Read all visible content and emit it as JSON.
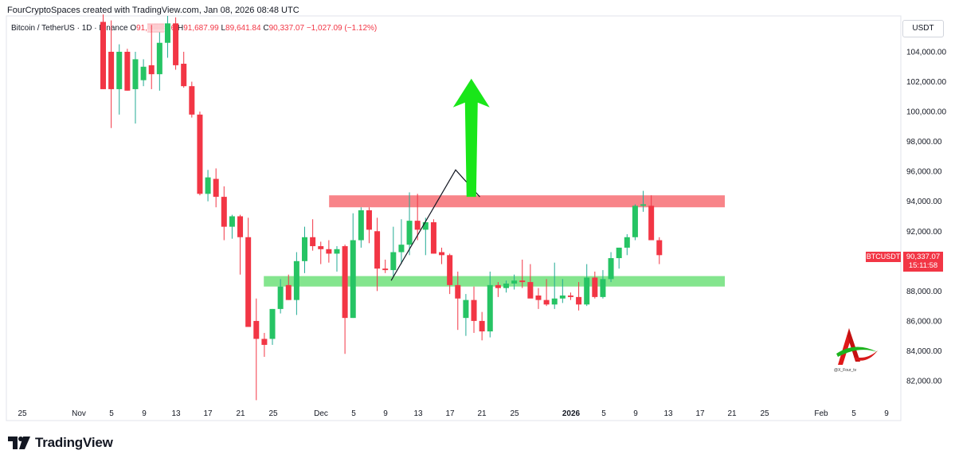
{
  "header": {
    "attribution": "FourCryptoSpaces created with TradingView.com, Jan 08, 2026 08:48 UTC"
  },
  "legend": {
    "symbol": "Bitcoin / TetherUS · 1D · Binance",
    "o_label": "O",
    "o_value": "91,▒▒▒.16",
    "h_label": "H",
    "h_value": "91,687.99",
    "l_label": "L",
    "l_value": "89,641.84",
    "c_label": "C",
    "c_value": "90,337.07",
    "change": "−1,027.09 (−1.12%)"
  },
  "price_scale": {
    "currency": "USDT",
    "ticks": [
      "104,000.00",
      "102,000.00",
      "100,000.00",
      "98,000.00",
      "96,000.00",
      "94,000.00",
      "92,000.00",
      "88,000.00",
      "86,000.00",
      "84,000.00",
      "82,000.00"
    ]
  },
  "last_price": {
    "symbol": "BTCUSDT",
    "price": "90,337.07",
    "countdown": "15:11:58"
  },
  "time_axis": {
    "labels": [
      "25",
      "Nov",
      "5",
      "9",
      "13",
      "17",
      "21",
      "25",
      "Dec",
      "5",
      "9",
      "13",
      "17",
      "21",
      "25",
      "2026",
      "5",
      "9",
      "13",
      "17",
      "21",
      "25",
      "Feb",
      "5",
      "9"
    ]
  },
  "watermark": {
    "handle": "@X_Four_tv"
  },
  "footer": {
    "brand": "TradingView"
  },
  "colors": {
    "up": "#22ab94",
    "up_fill": "#26c464",
    "down": "#f23645",
    "resistance_zone": "#f7797f",
    "support_zone": "#6fe07a",
    "projection_arrow": "#19e619"
  },
  "chart_data": {
    "type": "candlestick",
    "symbol": "BTCUSDT",
    "interval": "1D",
    "exchange": "Binance",
    "ylim": [
      80500,
      106000
    ],
    "zones": {
      "resistance": [
        93600,
        94400
      ],
      "support": [
        88300,
        89000
      ]
    },
    "projection_path": [
      {
        "day": 9,
        "price": 88700
      },
      {
        "day": 17,
        "price": 96100
      },
      {
        "day": 20,
        "price": 94300
      }
    ],
    "projection_arrow": {
      "day": 19,
      "from": 94300,
      "to": 102200
    },
    "candles_start_day": -4,
    "candles": [
      {
        "o": 106000,
        "h": 106500,
        "l": 101500,
        "c": 101500
      },
      {
        "o": 104000,
        "h": 106100,
        "l": 98900,
        "c": 101500
      },
      {
        "o": 101500,
        "h": 104500,
        "l": 99800,
        "c": 104000
      },
      {
        "o": 104000,
        "h": 104200,
        "l": 101400,
        "c": 101400
      },
      {
        "o": 101500,
        "h": 104000,
        "l": 99200,
        "c": 103500
      },
      {
        "o": 102100,
        "h": 103500,
        "l": 101700,
        "c": 103000
      },
      {
        "o": 103100,
        "h": 105800,
        "l": 101500,
        "c": 102500
      },
      {
        "o": 102500,
        "h": 105300,
        "l": 101400,
        "c": 104600
      },
      {
        "o": 104600,
        "h": 106400,
        "l": 103600,
        "c": 105900
      },
      {
        "o": 105900,
        "h": 106300,
        "l": 102800,
        "c": 103100
      },
      {
        "o": 103200,
        "h": 104000,
        "l": 101600,
        "c": 101700
      },
      {
        "o": 101700,
        "h": 102000,
        "l": 99600,
        "c": 99800
      },
      {
        "o": 99800,
        "h": 100000,
        "l": 94400,
        "c": 94500
      },
      {
        "o": 94500,
        "h": 96100,
        "l": 94000,
        "c": 95600
      },
      {
        "o": 95500,
        "h": 96200,
        "l": 93600,
        "c": 94300
      },
      {
        "o": 94300,
        "h": 95000,
        "l": 91400,
        "c": 92300
      },
      {
        "o": 92300,
        "h": 93100,
        "l": 91500,
        "c": 93000
      },
      {
        "o": 93000,
        "h": 93100,
        "l": 89100,
        "c": 91600
      },
      {
        "o": 91600,
        "h": 92900,
        "l": 85700,
        "c": 85600
      },
      {
        "o": 86000,
        "h": 87500,
        "l": 80700,
        "c": 84800
      },
      {
        "o": 84800,
        "h": 85200,
        "l": 83600,
        "c": 84400
      },
      {
        "o": 84800,
        "h": 86800,
        "l": 84400,
        "c": 86800
      },
      {
        "o": 86800,
        "h": 88800,
        "l": 86500,
        "c": 88300
      },
      {
        "o": 88400,
        "h": 89100,
        "l": 87400,
        "c": 87400
      },
      {
        "o": 87400,
        "h": 90600,
        "l": 86400,
        "c": 90000
      },
      {
        "o": 90000,
        "h": 92300,
        "l": 89200,
        "c": 91600
      },
      {
        "o": 91600,
        "h": 92800,
        "l": 90700,
        "c": 91000
      },
      {
        "o": 91000,
        "h": 91300,
        "l": 89800,
        "c": 90800
      },
      {
        "o": 90800,
        "h": 91400,
        "l": 89900,
        "c": 90500
      },
      {
        "o": 90500,
        "h": 91000,
        "l": 89300,
        "c": 90800
      },
      {
        "o": 91000,
        "h": 91100,
        "l": 83800,
        "c": 86200
      },
      {
        "o": 86200,
        "h": 93200,
        "l": 86200,
        "c": 91400
      },
      {
        "o": 91400,
        "h": 93600,
        "l": 90900,
        "c": 93400
      },
      {
        "o": 93400,
        "h": 93600,
        "l": 91200,
        "c": 92100
      },
      {
        "o": 92000,
        "h": 92900,
        "l": 88000,
        "c": 89500
      },
      {
        "o": 89500,
        "h": 90100,
        "l": 89200,
        "c": 89400
      },
      {
        "o": 89400,
        "h": 92300,
        "l": 89000,
        "c": 90600
      },
      {
        "o": 90600,
        "h": 92800,
        "l": 89800,
        "c": 91100
      },
      {
        "o": 91100,
        "h": 94600,
        "l": 90400,
        "c": 92700
      },
      {
        "o": 92700,
        "h": 94500,
        "l": 91400,
        "c": 92100
      },
      {
        "o": 92100,
        "h": 92900,
        "l": 90400,
        "c": 92600
      },
      {
        "o": 92600,
        "h": 92800,
        "l": 90500,
        "c": 90500
      },
      {
        "o": 90600,
        "h": 90900,
        "l": 89800,
        "c": 90400
      },
      {
        "o": 90400,
        "h": 90500,
        "l": 87800,
        "c": 88400
      },
      {
        "o": 88400,
        "h": 89300,
        "l": 85400,
        "c": 87500
      },
      {
        "o": 86200,
        "h": 87800,
        "l": 85000,
        "c": 87400
      },
      {
        "o": 87400,
        "h": 88300,
        "l": 85200,
        "c": 86000
      },
      {
        "o": 86000,
        "h": 86600,
        "l": 84700,
        "c": 85300
      },
      {
        "o": 85300,
        "h": 89300,
        "l": 84900,
        "c": 88400
      },
      {
        "o": 88400,
        "h": 88600,
        "l": 87600,
        "c": 88200
      },
      {
        "o": 88200,
        "h": 88700,
        "l": 87900,
        "c": 88500
      },
      {
        "o": 88500,
        "h": 89100,
        "l": 88100,
        "c": 88700
      },
      {
        "o": 88700,
        "h": 90100,
        "l": 88200,
        "c": 88600
      },
      {
        "o": 88600,
        "h": 89800,
        "l": 87700,
        "c": 87500
      },
      {
        "o": 87700,
        "h": 88200,
        "l": 86800,
        "c": 87400
      },
      {
        "o": 87400,
        "h": 88800,
        "l": 87000,
        "c": 87100
      },
      {
        "o": 87100,
        "h": 89900,
        "l": 86800,
        "c": 87500
      },
      {
        "o": 87500,
        "h": 88800,
        "l": 87200,
        "c": 87700
      },
      {
        "o": 87700,
        "h": 87900,
        "l": 87400,
        "c": 87600
      },
      {
        "o": 87600,
        "h": 88600,
        "l": 86700,
        "c": 87100
      },
      {
        "o": 87100,
        "h": 89800,
        "l": 87000,
        "c": 88900
      },
      {
        "o": 88900,
        "h": 89300,
        "l": 87500,
        "c": 87600
      },
      {
        "o": 87600,
        "h": 89400,
        "l": 87500,
        "c": 88800
      },
      {
        "o": 88800,
        "h": 90600,
        "l": 88600,
        "c": 90200
      },
      {
        "o": 90200,
        "h": 90900,
        "l": 89500,
        "c": 90900
      },
      {
        "o": 90900,
        "h": 91800,
        "l": 90400,
        "c": 91600
      },
      {
        "o": 91600,
        "h": 93800,
        "l": 91400,
        "c": 93700
      },
      {
        "o": 93700,
        "h": 94700,
        "l": 93300,
        "c": 93800
      },
      {
        "o": 93700,
        "h": 94400,
        "l": 91500,
        "c": 91400
      },
      {
        "o": 91400,
        "h": 91600,
        "l": 89800,
        "c": 90400
      }
    ]
  }
}
